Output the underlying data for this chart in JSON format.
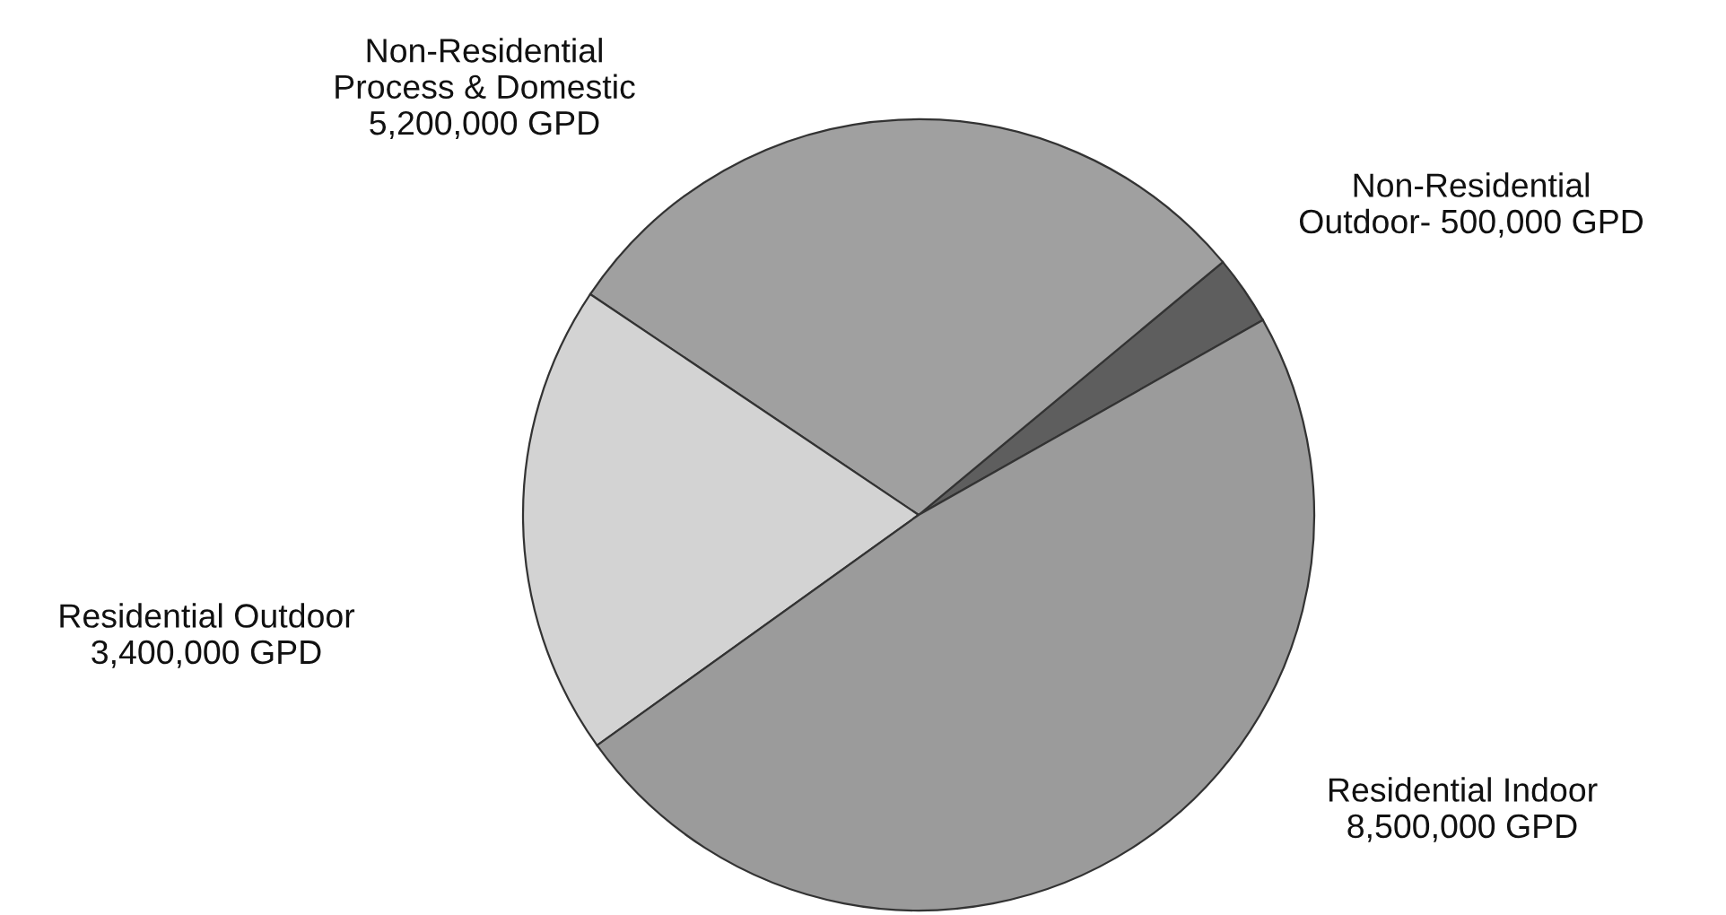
{
  "chart_data": {
    "type": "pie",
    "categories": [
      "Non-Residential\nOutdoor- 500,000 GPD",
      "Non-Residential\nProcess & Domestic\n5,200,000 GPD",
      "Residential Outdoor\n3,400,000 GPD",
      "Residential Indoor\n8,500,000 GPD"
    ],
    "values": [
      500000,
      5200000,
      3400000,
      8500000
    ],
    "colors": [
      "#5e5e5e",
      "#a0a0a0",
      "#d3d3d3",
      "#9b9b9b"
    ]
  }
}
